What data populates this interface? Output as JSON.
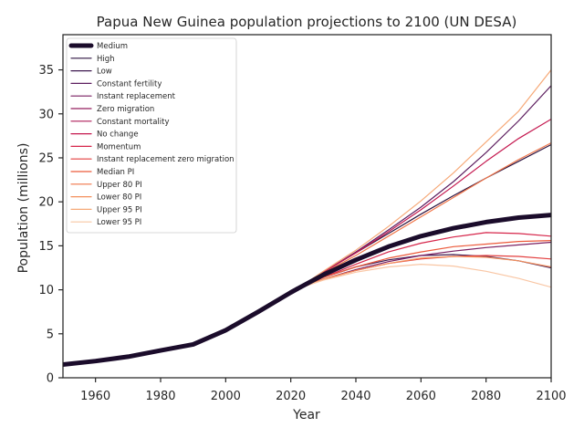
{
  "chart_data": {
    "type": "line",
    "title": "Papua New Guinea population projections to 2100 (UN DESA)",
    "xlabel": "Year",
    "ylabel": "Population (millions)",
    "xlim": [
      1950,
      2100
    ],
    "ylim": [
      0,
      39
    ],
    "xticks": [
      1960,
      1980,
      2000,
      2020,
      2040,
      2060,
      2080,
      2100
    ],
    "yticks": [
      0,
      5,
      10,
      15,
      20,
      25,
      30,
      35
    ],
    "grid": false,
    "legend_position": "top-left",
    "historical": {
      "x": [
        1950,
        1960,
        1970,
        1980,
        1990,
        2000,
        2010,
        2020,
        2022
      ],
      "y": [
        1.5,
        1.9,
        2.4,
        3.1,
        3.8,
        5.4,
        7.5,
        9.7,
        10.1
      ]
    },
    "series": [
      {
        "name": "Medium",
        "color": "#1b0c2b",
        "width": 5,
        "x": [
          2022,
          2030,
          2040,
          2050,
          2060,
          2070,
          2080,
          2090,
          2100
        ],
        "y": [
          10.1,
          11.7,
          13.4,
          14.9,
          16.1,
          17.0,
          17.7,
          18.2,
          18.5
        ]
      },
      {
        "name": "High",
        "color": "#2d1440",
        "width": 1.2,
        "x": [
          2022,
          2030,
          2040,
          2050,
          2060,
          2070,
          2080,
          2090,
          2100
        ],
        "y": [
          10.1,
          12.0,
          14.2,
          16.4,
          18.6,
          20.7,
          22.7,
          24.6,
          26.5
        ]
      },
      {
        "name": "Low",
        "color": "#3f1a50",
        "width": 1.2,
        "x": [
          2022,
          2030,
          2040,
          2050,
          2060,
          2070,
          2080,
          2090,
          2100
        ],
        "y": [
          10.1,
          11.4,
          12.6,
          13.4,
          13.9,
          14.0,
          13.8,
          13.3,
          12.5
        ]
      },
      {
        "name": "Constant fertility",
        "color": "#5c1e5f",
        "width": 1.2,
        "x": [
          2022,
          2030,
          2040,
          2050,
          2060,
          2070,
          2080,
          2090,
          2100
        ],
        "y": [
          10.1,
          12.0,
          14.3,
          16.8,
          19.4,
          22.3,
          25.6,
          29.2,
          33.2
        ]
      },
      {
        "name": "Instant replacement",
        "color": "#7a1f61",
        "width": 1.2,
        "x": [
          2022,
          2030,
          2040,
          2050,
          2060,
          2070,
          2080,
          2090,
          2100
        ],
        "y": [
          10.1,
          11.2,
          12.3,
          13.2,
          13.9,
          14.4,
          14.8,
          15.1,
          15.4
        ]
      },
      {
        "name": "Zero migration",
        "color": "#931f5e",
        "width": 1.2,
        "x": [
          2022,
          2030,
          2040,
          2050,
          2060,
          2070,
          2080,
          2090,
          2100
        ],
        "y": [
          10.1,
          11.7,
          13.4,
          14.9,
          16.1,
          17.0,
          17.7,
          18.2,
          18.6
        ]
      },
      {
        "name": "Constant mortality",
        "color": "#ad1c58",
        "width": 1.2,
        "x": [
          2022,
          2030,
          2040,
          2050,
          2060,
          2070,
          2080,
          2090,
          2100
        ],
        "y": [
          10.1,
          11.7,
          13.3,
          14.9,
          16.0,
          16.9,
          17.6,
          18.1,
          18.4
        ]
      },
      {
        "name": "No change",
        "color": "#c4184f",
        "width": 1.2,
        "x": [
          2022,
          2030,
          2040,
          2050,
          2060,
          2070,
          2080,
          2090,
          2100
        ],
        "y": [
          10.1,
          12.0,
          14.2,
          16.6,
          19.1,
          21.8,
          24.6,
          27.2,
          29.4
        ]
      },
      {
        "name": "Momentum",
        "color": "#d6254a",
        "width": 1.2,
        "x": [
          2022,
          2030,
          2040,
          2050,
          2060,
          2070,
          2080,
          2090,
          2100
        ],
        "y": [
          10.1,
          11.4,
          12.9,
          14.3,
          15.3,
          16.0,
          16.5,
          16.4,
          16.1
        ]
      },
      {
        "name": "Instant replacement zero migration",
        "color": "#e33f3f",
        "width": 1.2,
        "x": [
          2022,
          2030,
          2040,
          2050,
          2060,
          2070,
          2080,
          2090,
          2100
        ],
        "y": [
          10.1,
          11.2,
          12.2,
          13.0,
          13.5,
          13.8,
          13.9,
          13.8,
          13.5
        ]
      },
      {
        "name": "Median PI",
        "color": "#ec5a3b",
        "width": 1.2,
        "x": [
          2022,
          2030,
          2040,
          2050,
          2060,
          2070,
          2080,
          2090,
          2100
        ],
        "y": [
          10.1,
          11.4,
          12.6,
          13.6,
          14.3,
          14.9,
          15.2,
          15.5,
          15.6
        ]
      },
      {
        "name": "Upper 80 PI",
        "color": "#f07548",
        "width": 1.2,
        "x": [
          2022,
          2030,
          2040,
          2050,
          2060,
          2070,
          2080,
          2090,
          2100
        ],
        "y": [
          10.1,
          11.9,
          13.9,
          16.1,
          18.3,
          20.5,
          22.7,
          24.8,
          26.7
        ]
      },
      {
        "name": "Lower 80 PI",
        "color": "#f38f5c",
        "width": 1.2,
        "x": [
          2022,
          2030,
          2040,
          2050,
          2060,
          2070,
          2080,
          2090,
          2100
        ],
        "y": [
          10.1,
          11.2,
          12.2,
          13.0,
          13.6,
          13.8,
          13.7,
          13.3,
          12.6
        ]
      },
      {
        "name": "Upper 95 PI",
        "color": "#f6a978",
        "width": 1.2,
        "x": [
          2022,
          2030,
          2040,
          2050,
          2060,
          2070,
          2080,
          2090,
          2100
        ],
        "y": [
          10.1,
          12.1,
          14.5,
          17.2,
          20.1,
          23.3,
          26.8,
          30.3,
          35.0
        ]
      },
      {
        "name": "Lower 95 PI",
        "color": "#f9c6a4",
        "width": 1.2,
        "x": [
          2022,
          2030,
          2040,
          2050,
          2060,
          2070,
          2080,
          2090,
          2100
        ],
        "y": [
          10.1,
          11.1,
          12.0,
          12.6,
          12.9,
          12.7,
          12.1,
          11.3,
          10.3
        ]
      }
    ]
  }
}
